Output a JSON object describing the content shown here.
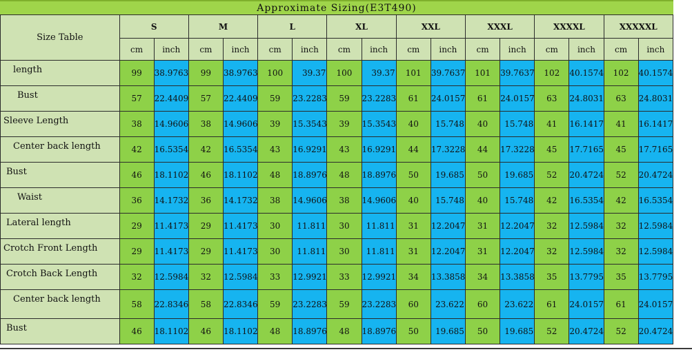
{
  "title": "Approximate Sizing(E3T490)",
  "corner_label": "Size Table",
  "sizes": [
    "S",
    "M",
    "L",
    "XL",
    "XXL",
    "XXXL",
    "XXXXL",
    "XXXXXL"
  ],
  "unit_cm": "cm",
  "unit_inch": "inch",
  "colors": {
    "title_bg": "#9fd54a",
    "header_bg": "#cfe2b3",
    "cm_bg": "#8ed148",
    "inch_bg": "#16b4f0"
  },
  "rows": [
    {
      "label": "length",
      "values": [
        "99",
        "38.9763",
        "99",
        "38.9763",
        "100",
        "39.37",
        "100",
        "39.37",
        "101",
        "39.7637",
        "101",
        "39.7637",
        "102",
        "40.1574",
        "102",
        "40.1574"
      ]
    },
    {
      "label": "Bust",
      "values": [
        "57",
        "22.4409",
        "57",
        "22.4409",
        "59",
        "23.2283",
        "59",
        "23.2283",
        "61",
        "24.0157",
        "61",
        "24.0157",
        "63",
        "24.8031",
        "63",
        "24.8031"
      ]
    },
    {
      "label": "Sleeve Length",
      "values": [
        "38",
        "14.9606",
        "38",
        "14.9606",
        "39",
        "15.3543",
        "39",
        "15.3543",
        "40",
        "15.748",
        "40",
        "15.748",
        "41",
        "16.1417",
        "41",
        "16.1417"
      ]
    },
    {
      "label": "Center back length",
      "values": [
        "42",
        "16.5354",
        "42",
        "16.5354",
        "43",
        "16.9291",
        "43",
        "16.9291",
        "44",
        "17.3228",
        "44",
        "17.3228",
        "45",
        "17.7165",
        "45",
        "17.7165"
      ]
    },
    {
      "label": "Bust",
      "values": [
        "46",
        "18.1102",
        "46",
        "18.1102",
        "48",
        "18.8976",
        "48",
        "18.8976",
        "50",
        "19.685",
        "50",
        "19.685",
        "52",
        "20.4724",
        "52",
        "20.4724"
      ]
    },
    {
      "label": "Waist",
      "values": [
        "36",
        "14.1732",
        "36",
        "14.1732",
        "38",
        "14.9606",
        "38",
        "14.9606",
        "40",
        "15.748",
        "40",
        "15.748",
        "42",
        "16.5354",
        "42",
        "16.5354"
      ]
    },
    {
      "label": "Lateral length",
      "values": [
        "29",
        "11.4173",
        "29",
        "11.4173",
        "30",
        "11.811",
        "30",
        "11.811",
        "31",
        "12.2047",
        "31",
        "12.2047",
        "32",
        "12.5984",
        "32",
        "12.5984"
      ]
    },
    {
      "label": "Crotch Front Length",
      "values": [
        "29",
        "11.4173",
        "29",
        "11.4173",
        "30",
        "11.811",
        "30",
        "11.811",
        "31",
        "12.2047",
        "31",
        "12.2047",
        "32",
        "12.5984",
        "32",
        "12.5984"
      ]
    },
    {
      "label": "Crotch Back Length",
      "values": [
        "32",
        "12.5984",
        "32",
        "12.5984",
        "33",
        "12.9921",
        "33",
        "12.9921",
        "34",
        "13.3858",
        "34",
        "13.3858",
        "35",
        "13.7795",
        "35",
        "13.7795"
      ]
    },
    {
      "label": "Center back length",
      "values": [
        "58",
        "22.8346",
        "58",
        "22.8346",
        "59",
        "23.2283",
        "59",
        "23.2283",
        "60",
        "23.622",
        "60",
        "23.622",
        "61",
        "24.0157",
        "61",
        "24.0157"
      ]
    },
    {
      "label": "Bust",
      "values": [
        "46",
        "18.1102",
        "46",
        "18.1102",
        "48",
        "18.8976",
        "48",
        "18.8976",
        "50",
        "19.685",
        "50",
        "19.685",
        "52",
        "20.4724",
        "52",
        "20.4724"
      ]
    }
  ]
}
